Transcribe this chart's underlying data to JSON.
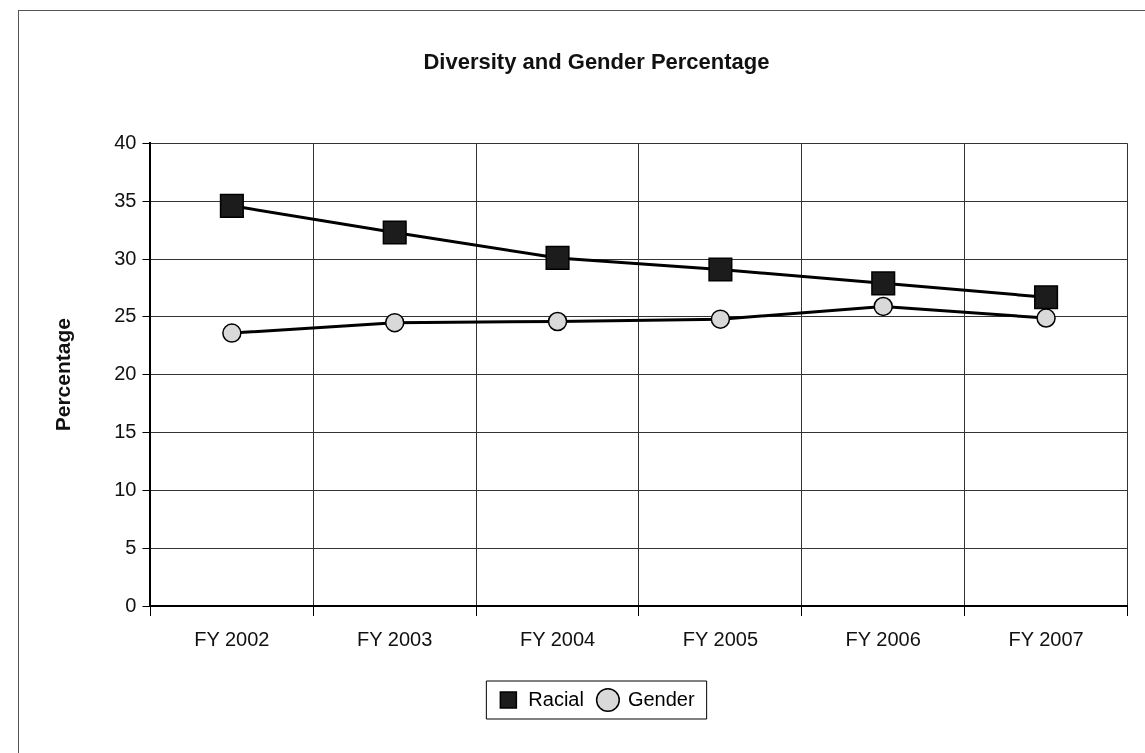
{
  "chart_data": {
    "type": "line",
    "title": "Diversity and Gender Percentage",
    "ylabel": "Percentage",
    "categories": [
      "FY 2002",
      "FY 2003",
      "FY 2004",
      "FY 2005",
      "FY 2006",
      "FY 2007"
    ],
    "series": [
      {
        "name": "Racial",
        "color": "#1c1c1c",
        "marker": "square",
        "values": [
          34.6,
          32.3,
          30.1,
          29.1,
          27.9,
          26.7
        ]
      },
      {
        "name": "Gender",
        "color": "#d9d9d9",
        "marker": "circle",
        "values": [
          23.6,
          24.5,
          24.6,
          24.8,
          25.9,
          24.9
        ]
      }
    ],
    "ylim": [
      0,
      40
    ],
    "yticks": [
      0,
      5,
      10,
      15,
      20,
      25,
      30,
      35,
      40
    ],
    "grid": true,
    "legend": "bottom"
  }
}
